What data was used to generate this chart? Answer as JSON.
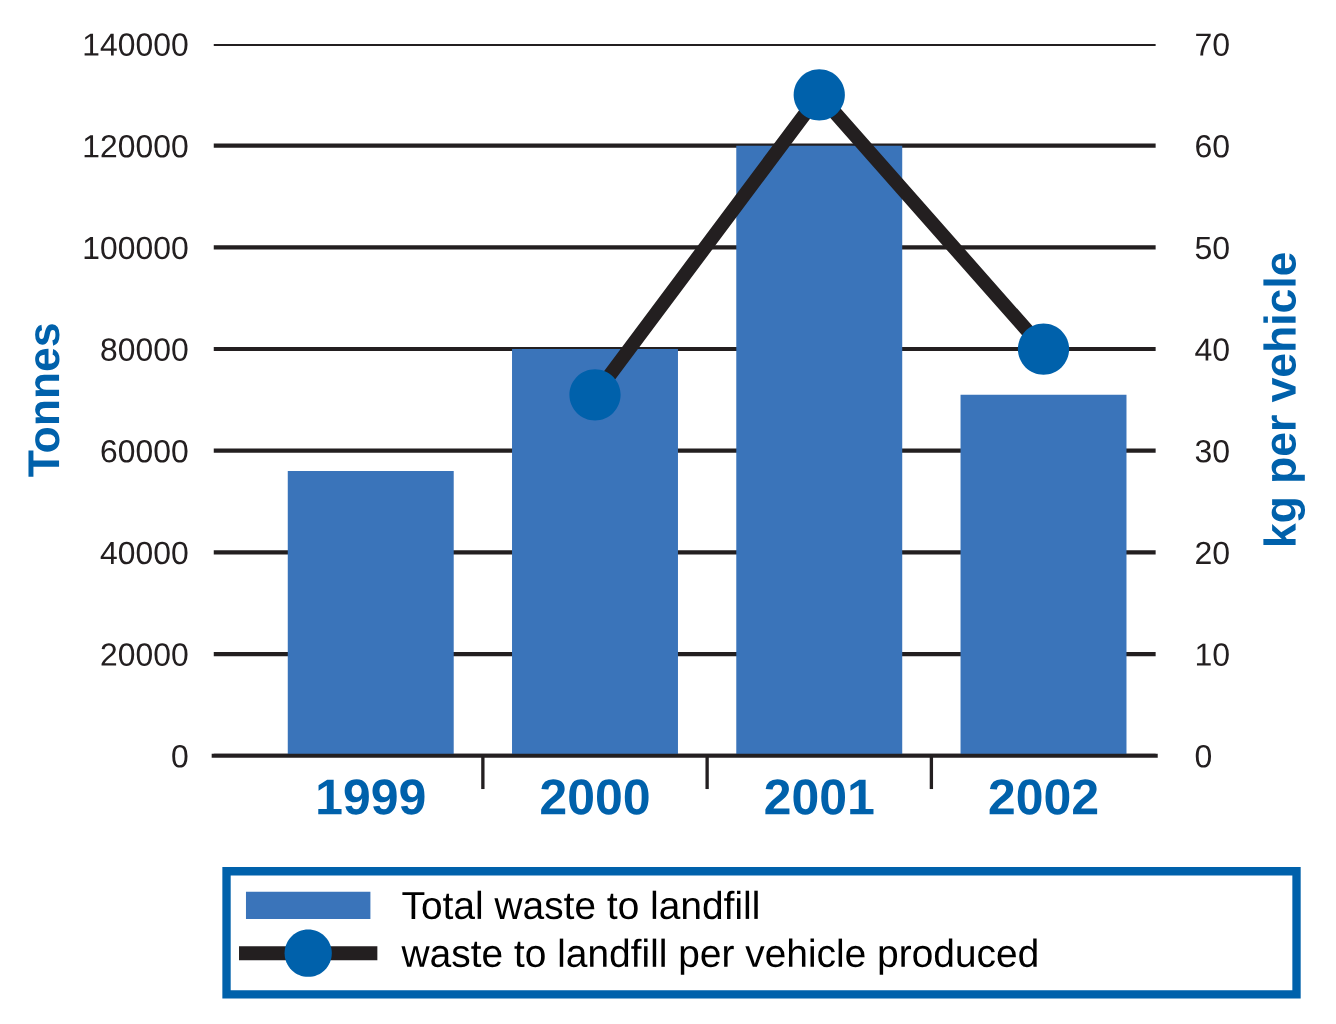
{
  "chart_data": {
    "type": "bar",
    "categories": [
      "1999",
      "2000",
      "2001",
      "2002"
    ],
    "ylabel": "Tonnes",
    "y2label": "kg per vehicle",
    "ylim": [
      0,
      140000
    ],
    "yticks": [
      0,
      20000,
      40000,
      60000,
      80000,
      100000,
      120000,
      140000
    ],
    "y2lim": [
      0,
      70
    ],
    "y2ticks": [
      0,
      10,
      20,
      30,
      40,
      50,
      60,
      70
    ],
    "grid": "y",
    "legend": "bottom",
    "marker": "circle",
    "line_style": "solid",
    "series": [
      {
        "name": "Total waste to landfill",
        "color": "#3a74ba",
        "values": [
          56000,
          80000,
          120000,
          71000
        ]
      },
      {
        "name": "waste to landfill per vehicle produced",
        "type": "line",
        "axis": "y2",
        "color": "#231f20",
        "colors": [
          "#0061ab",
          "#0061ab",
          "#0061ab",
          "#0061ab"
        ],
        "values": [
          null,
          35.5,
          65,
          40
        ]
      }
    ]
  }
}
